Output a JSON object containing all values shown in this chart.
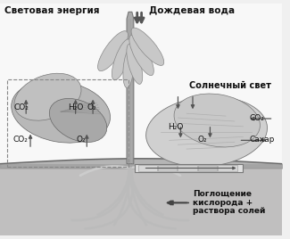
{
  "bg_color": "#f0f0f0",
  "labels": {
    "svetovaya": "Световая энергия",
    "dozhdvaya": "Дождевая вода",
    "solnechny": "Солнечный свет",
    "pogloshenie_line1": "Поглощение",
    "pogloshenie_line2": "кислорода +",
    "pogloshenie_line3": "раствора солей",
    "co2_left_top": "CO₂",
    "h2o_left": "H₂O",
    "o2_left_top": "O₂",
    "o2_left_bot": "O₂",
    "co2_left_bot": "CO₂",
    "co2_right": "CO₂",
    "h2o_right": "H₂O",
    "o2_right": "O₂",
    "sakhar": "Сахар"
  },
  "text_color": "#111111",
  "arrow_color": "#444444",
  "soil_color": "#b0b0b0",
  "leaf_dark": "#888888",
  "leaf_light": "#cccccc",
  "stem_color": "#999999"
}
